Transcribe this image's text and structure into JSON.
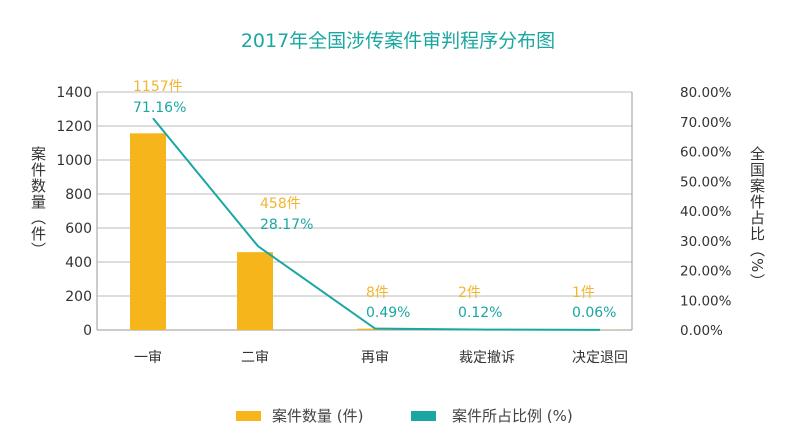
{
  "chart_data": {
    "type": "bar",
    "title": "2017年全国涉传案件审判程序分布图",
    "categories": [
      "一审",
      "二审",
      "再审",
      "裁定撤诉",
      "决定退回"
    ],
    "series": [
      {
        "name": "案件数量 (件)",
        "type": "bar",
        "axis": "left",
        "values": [
          1157,
          458,
          8,
          2,
          1
        ],
        "labels": [
          "1157件",
          "458件",
          "8件",
          "2件",
          "1件"
        ],
        "color": "#f7b51c"
      },
      {
        "name": "案件所占比例 (%)",
        "type": "line",
        "axis": "right",
        "values": [
          71.16,
          28.17,
          0.49,
          0.12,
          0.06
        ],
        "labels": [
          "71.16%",
          "28.17%",
          "0.49%",
          "0.12%",
          "0.06%"
        ],
        "color": "#1aa7a2"
      }
    ],
    "ylabel": "案件数量（件）",
    "ylabel_right": "全国案件占比（%）",
    "ylim": [
      0,
      1400
    ],
    "ylim_right": [
      0,
      80
    ],
    "yticks": [
      "0",
      "200",
      "400",
      "600",
      "800",
      "1000",
      "1200",
      "1400"
    ],
    "yticks_right": [
      "0.00%",
      "10.00%",
      "20.00%",
      "30.00%",
      "40.00%",
      "50.00%",
      "60.00%",
      "70.00%",
      "80.00%"
    ],
    "grid": true,
    "legend": "bottom",
    "colors": {
      "title": "#1aa7a2",
      "label_count": "#f2b531",
      "label_pct": "#1aa7a2"
    }
  }
}
